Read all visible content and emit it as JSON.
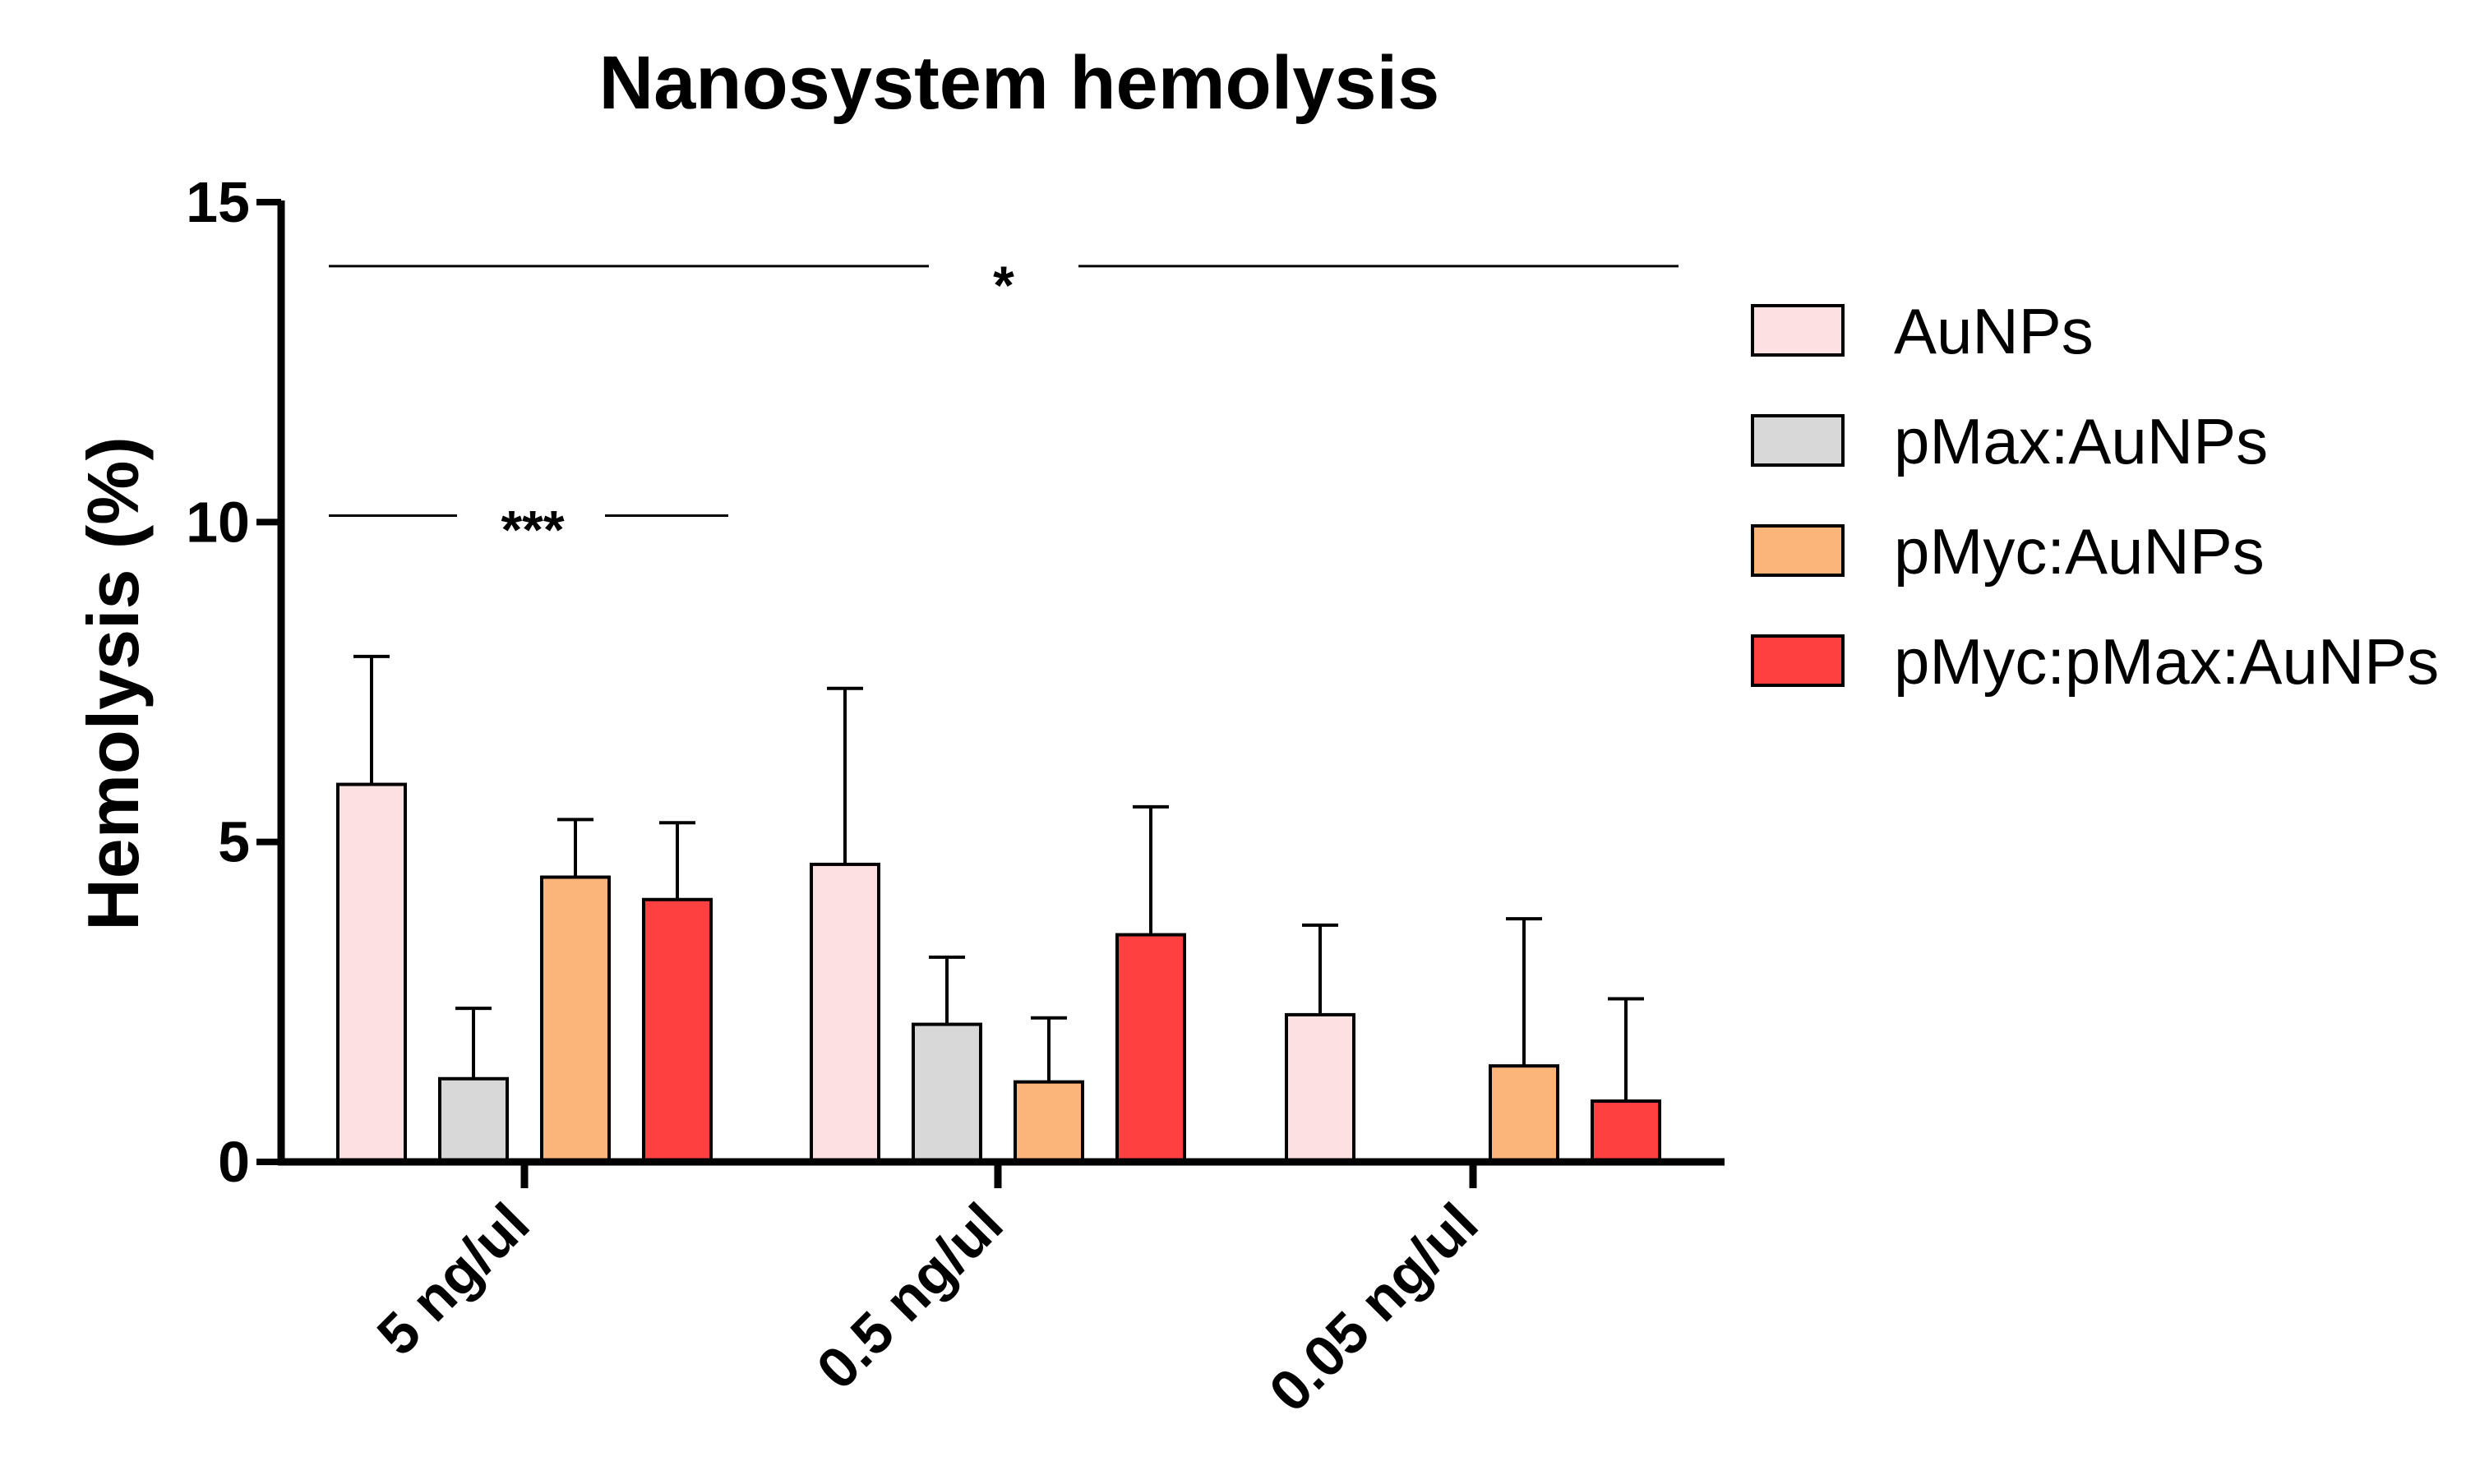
{
  "chart_data": {
    "type": "bar",
    "title": "Nanosystem hemolysis",
    "xlabel": "",
    "ylabel": "Hemolysis (%)",
    "ylim": [
      0,
      15
    ],
    "yticks": [
      0,
      5,
      10,
      15
    ],
    "ytick_labels": [
      "0",
      "5",
      "10",
      "15"
    ],
    "categories": [
      "5 ng/ul",
      "0.5 ng/ul",
      "0.05 ng/ul"
    ],
    "series": [
      {
        "name": "AuNPs",
        "color": "#fde0e2",
        "values": [
          5.9,
          4.65,
          2.3
        ],
        "errors": [
          2.0,
          2.75,
          1.4
        ]
      },
      {
        "name": "pMax:AuNPs",
        "color": "#d8d8d8",
        "values": [
          1.3,
          2.15,
          0.0
        ],
        "errors": [
          1.1,
          1.05,
          0.0
        ]
      },
      {
        "name": "pMyc:AuNPs",
        "color": "#fbb57a",
        "values": [
          4.45,
          1.25,
          1.5
        ],
        "errors": [
          0.9,
          1.0,
          2.3
        ]
      },
      {
        "name": "pMyc:pMax:AuNPs",
        "color": "#ff4040",
        "values": [
          4.1,
          3.55,
          0.95
        ],
        "errors": [
          1.2,
          2.0,
          1.6
        ]
      }
    ],
    "legend": {
      "position": "right",
      "entries": [
        "AuNPs",
        "pMax:AuNPs",
        "pMyc:AuNPs",
        "pMyc:pMax:AuNPs"
      ]
    },
    "annotations": [
      {
        "text": "*",
        "y": 14.0,
        "x_from": "5 ng/ul",
        "x_to": "0.05 ng/ul"
      },
      {
        "text": "***",
        "y": 10.1,
        "x_from": "5 ng/ul",
        "x_to": "5 ng/ul"
      }
    ],
    "grid": false
  }
}
